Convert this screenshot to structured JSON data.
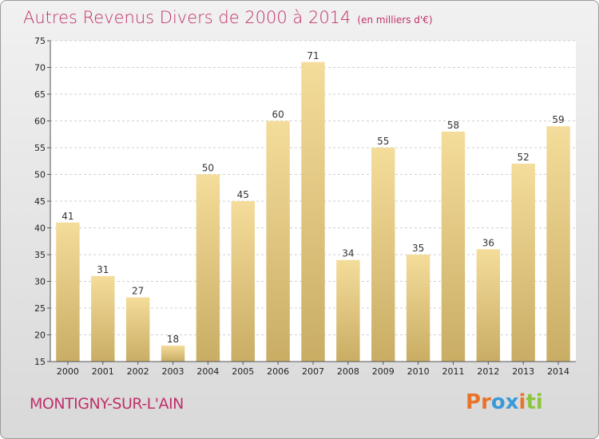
{
  "header": {
    "title": "Autres Revenus Divers de 2000 à 2014",
    "subtitle": "(en milliers d'€)"
  },
  "footer": {
    "town": "MONTIGNY-SUR-L'AIN",
    "logo_text": "Proxiti"
  },
  "colors": {
    "title": "#c0306a",
    "bar_light": "#f4dc9a",
    "bar_dark": "#c9ad64",
    "logo": [
      "#e8742a",
      "#e8742a",
      "#3a9ad9",
      "#3a9ad9",
      "#e8742a",
      "#8cc63f",
      "#8cc63f"
    ]
  },
  "chart_data": {
    "type": "bar",
    "title": "Autres Revenus Divers de 2000 à 2014",
    "categories": [
      "2000",
      "2001",
      "2002",
      "2003",
      "2004",
      "2005",
      "2006",
      "2007",
      "2008",
      "2009",
      "2010",
      "2011",
      "2012",
      "2013",
      "2014"
    ],
    "values": [
      41,
      31,
      27,
      18,
      50,
      45,
      60,
      71,
      34,
      55,
      35,
      58,
      36,
      52,
      59
    ],
    "ylim": [
      15,
      75
    ],
    "yticks": [
      15,
      20,
      25,
      30,
      35,
      40,
      45,
      50,
      55,
      60,
      65,
      70,
      75
    ],
    "grid": true,
    "xlabel": "",
    "ylabel": ""
  }
}
